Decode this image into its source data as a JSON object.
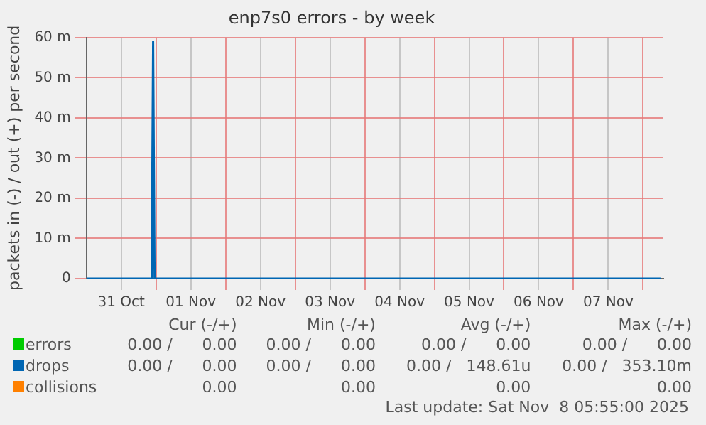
{
  "chart_data": {
    "type": "line",
    "title": "enp7s0 errors - by week",
    "ylabel": "packets in (-) / out (+) per second",
    "xlim": [
      "2025-10-31T00:00",
      "2025-11-08T07:00"
    ],
    "xticks": [
      {
        "value": "2025-10-31T12:00",
        "label": "31 Oct"
      },
      {
        "value": "2025-11-01T00:00",
        "label": null
      },
      {
        "value": "2025-11-01T12:00",
        "label": "01 Nov"
      },
      {
        "value": "2025-11-02T00:00",
        "label": null
      },
      {
        "value": "2025-11-02T12:00",
        "label": "02 Nov"
      },
      {
        "value": "2025-11-03T00:00",
        "label": null
      },
      {
        "value": "2025-11-03T12:00",
        "label": "03 Nov"
      },
      {
        "value": "2025-11-04T00:00",
        "label": null
      },
      {
        "value": "2025-11-04T12:00",
        "label": "04 Nov"
      },
      {
        "value": "2025-11-05T00:00",
        "label": null
      },
      {
        "value": "2025-11-05T12:00",
        "label": "05 Nov"
      },
      {
        "value": "2025-11-06T00:00",
        "label": null
      },
      {
        "value": "2025-11-06T12:00",
        "label": "06 Nov"
      },
      {
        "value": "2025-11-07T00:00",
        "label": null
      },
      {
        "value": "2025-11-07T12:00",
        "label": "07 Nov"
      },
      {
        "value": "2025-11-08T00:00",
        "label": null
      }
    ],
    "ylim": [
      0,
      60
    ],
    "yticks": [
      0,
      {
        "value": 10,
        "label": "10 m"
      },
      {
        "value": 20,
        "label": "20 m"
      },
      {
        "value": 30,
        "label": "30 m"
      },
      {
        "value": 40,
        "label": "40 m"
      },
      {
        "value": 50,
        "label": "50 m"
      },
      {
        "value": 60,
        "label": "60 m"
      }
    ],
    "grid": true,
    "legend": "bottom",
    "marker": "none",
    "line_style": "solid",
    "series": [
      {
        "name": "errors",
        "color": "#00cc00"
      },
      {
        "name": "drops",
        "color": "#0066b3",
        "x": [
          "2025-10-31T00:00",
          "2025-10-31T22:30",
          "2025-10-31T23:00",
          "2025-10-31T23:30",
          "2025-11-08T06:00"
        ],
        "values": [
          0,
          0,
          59,
          0,
          0
        ]
      },
      {
        "name": "collisions",
        "color": "#ff8000"
      }
    ],
    "annotations": [
      "Cur (-/+)",
      "Min (-/+)",
      "Avg (-/+)",
      "Max (-/+)",
      "0.00 /      0.00",
      "0.00 /      0.00",
      "0.00 /      0.00",
      "0.00 /      0.00",
      "0.00 /      0.00",
      "0.00 /      0.00",
      "0.00 /   148.61u",
      "0.00 /   353.10m",
      "0.00",
      "0.00",
      "0.00",
      "0.00",
      "Last update: Sat Nov  8 05:55:00 2025"
    ]
  }
}
